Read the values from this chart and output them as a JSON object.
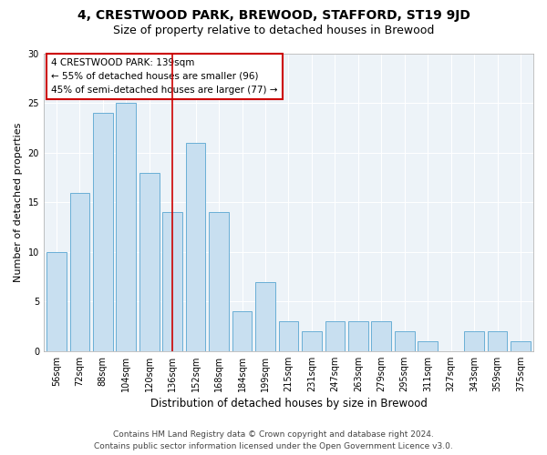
{
  "title": "4, CRESTWOOD PARK, BREWOOD, STAFFORD, ST19 9JD",
  "subtitle": "Size of property relative to detached houses in Brewood",
  "xlabel": "Distribution of detached houses by size in Brewood",
  "ylabel": "Number of detached properties",
  "bar_labels": [
    "56sqm",
    "72sqm",
    "88sqm",
    "104sqm",
    "120sqm",
    "136sqm",
    "152sqm",
    "168sqm",
    "184sqm",
    "199sqm",
    "215sqm",
    "231sqm",
    "247sqm",
    "263sqm",
    "279sqm",
    "295sqm",
    "311sqm",
    "327sqm",
    "343sqm",
    "359sqm",
    "375sqm"
  ],
  "bar_values": [
    10,
    16,
    24,
    25,
    18,
    14,
    21,
    14,
    4,
    7,
    3,
    2,
    3,
    3,
    3,
    2,
    1,
    0,
    2,
    2,
    1
  ],
  "bar_color": "#c8dff0",
  "bar_edgecolor": "#6aafd6",
  "vline_x_index": 5,
  "vline_color": "#cc0000",
  "annotation_title": "4 CRESTWOOD PARK: 139sqm",
  "annotation_line1": "← 55% of detached houses are smaller (96)",
  "annotation_line2": "45% of semi-detached houses are larger (77) →",
  "annotation_box_edgecolor": "#cc0000",
  "ylim": [
    0,
    30
  ],
  "yticks": [
    0,
    5,
    10,
    15,
    20,
    25,
    30
  ],
  "footer_line1": "Contains HM Land Registry data © Crown copyright and database right 2024.",
  "footer_line2": "Contains public sector information licensed under the Open Government Licence v3.0.",
  "bg_color": "#edf3f8",
  "grid_color": "#ffffff",
  "title_fontsize": 10,
  "subtitle_fontsize": 9,
  "xlabel_fontsize": 8.5,
  "ylabel_fontsize": 8,
  "tick_fontsize": 7,
  "footer_fontsize": 6.5,
  "annotation_fontsize": 7.5
}
